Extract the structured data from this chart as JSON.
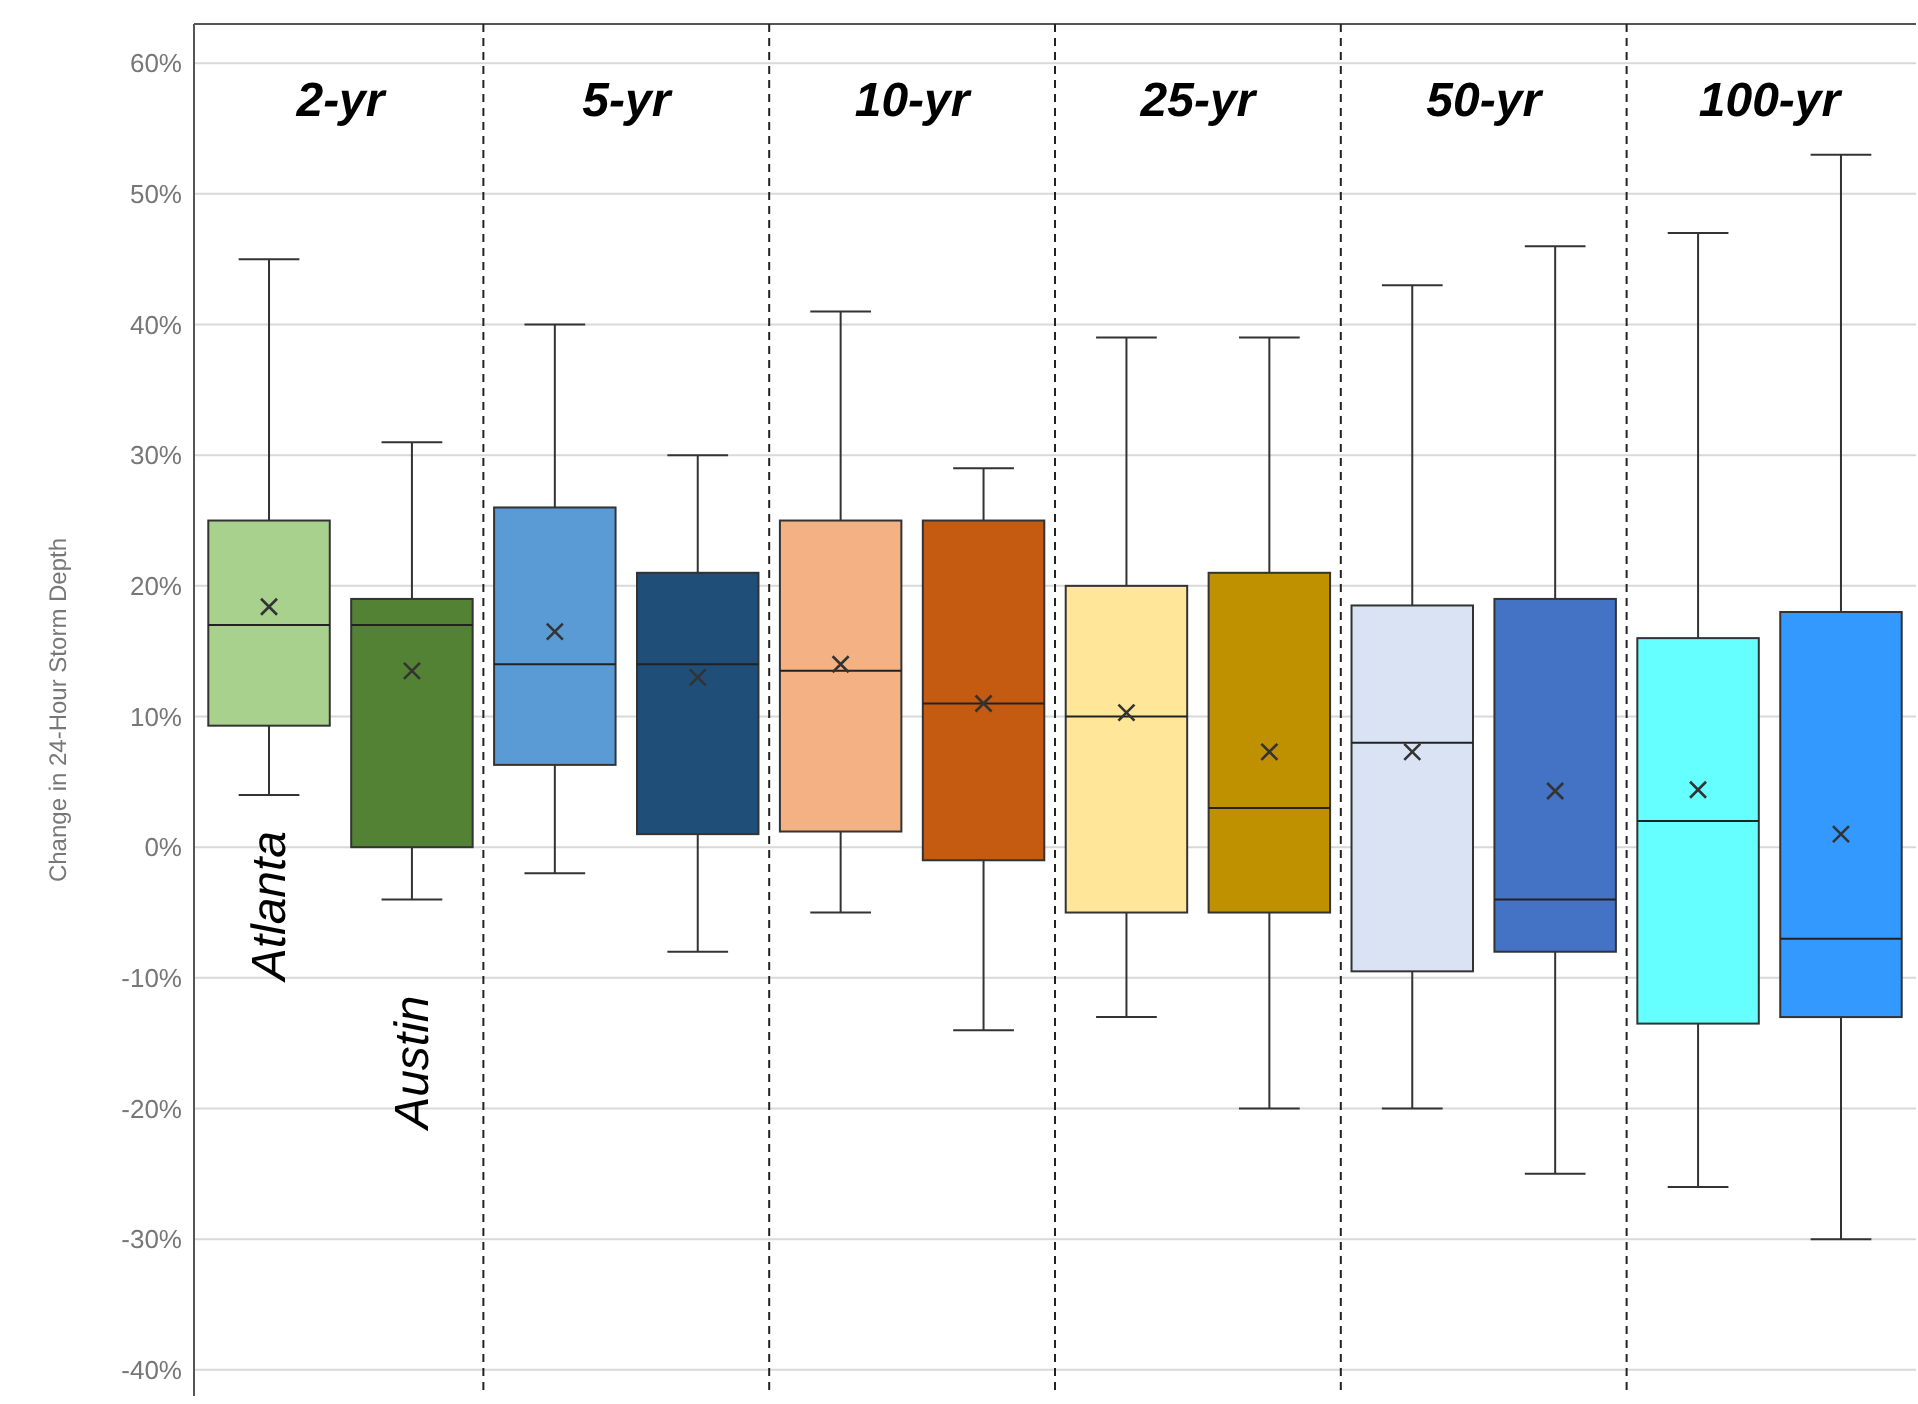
{
  "chart_data": {
    "type": "box",
    "ylabel": "Change in 24-Hour Storm Depth",
    "categories": [
      null,
      null,
      null,
      null,
      null,
      null,
      null,
      null,
      null,
      null,
      null,
      null
    ],
    "colors": [
      "#a9d18e",
      "#548235",
      "#5b9bd5",
      "#1f4e79",
      "#f4b183",
      "#c55a11",
      "#ffe699",
      "#bf9000",
      "#dae3f3",
      "#4472c4",
      "#66ffff",
      "#3399ff"
    ],
    "boxes": [
      {
        "low": 4,
        "q1": 9.3,
        "median": 17,
        "q3": 25,
        "high": 45,
        "mean": 18.4
      },
      {
        "low": -4,
        "q1": 0,
        "median": 17,
        "q3": 19,
        "high": 31,
        "mean": 13.5
      },
      {
        "low": -2,
        "q1": 6.3,
        "median": 14,
        "q3": 26,
        "high": 40,
        "mean": 16.5
      },
      {
        "low": -8,
        "q1": 1,
        "median": 14,
        "q3": 21,
        "high": 30,
        "mean": 13
      },
      {
        "low": -5,
        "q1": 1.2,
        "median": 13.5,
        "q3": 25,
        "high": 41,
        "mean": 14
      },
      {
        "low": -14,
        "q1": -1,
        "median": 11,
        "q3": 25,
        "high": 29,
        "mean": 11
      },
      {
        "low": -13,
        "q1": -5,
        "median": 10,
        "q3": 20,
        "high": 39,
        "mean": 10.3
      },
      {
        "low": -20,
        "q1": -5,
        "median": 3,
        "q3": 21,
        "high": 39,
        "mean": 7.3
      },
      {
        "low": -20,
        "q1": -9.5,
        "median": 8,
        "q3": 18.5,
        "high": 43,
        "mean": 7.3
      },
      {
        "low": -25,
        "q1": -8,
        "median": -4,
        "q3": 19,
        "high": 46,
        "mean": 4.3
      },
      {
        "low": -26,
        "q1": -13.5,
        "median": 2,
        "q3": 16,
        "high": 47,
        "mean": 4.4
      },
      {
        "low": -30,
        "q1": -13,
        "median": -7,
        "q3": 18,
        "high": 53,
        "mean": 1
      }
    ],
    "ylim": [
      -42,
      63
    ],
    "yticks": [
      {
        "value": -40,
        "label": "-40%"
      },
      {
        "value": -30,
        "label": "-30%"
      },
      {
        "value": -20,
        "label": "-20%"
      },
      {
        "value": -10,
        "label": "-10%"
      },
      {
        "value": 0,
        "label": "0%"
      },
      {
        "value": 10,
        "label": "10%"
      },
      {
        "value": 20,
        "label": "20%"
      },
      {
        "value": 30,
        "label": "30%"
      },
      {
        "value": 40,
        "label": "40%"
      },
      {
        "value": 50,
        "label": "50%"
      },
      {
        "value": 60,
        "label": "60%"
      }
    ],
    "grid": "y",
    "tick_labels": "y",
    "marker": "cross",
    "annotations": [
      "2-yr",
      "5-yr",
      "10-yr",
      "25-yr",
      "50-yr",
      "100-yr",
      "Atlanta",
      "Austin"
    ]
  }
}
